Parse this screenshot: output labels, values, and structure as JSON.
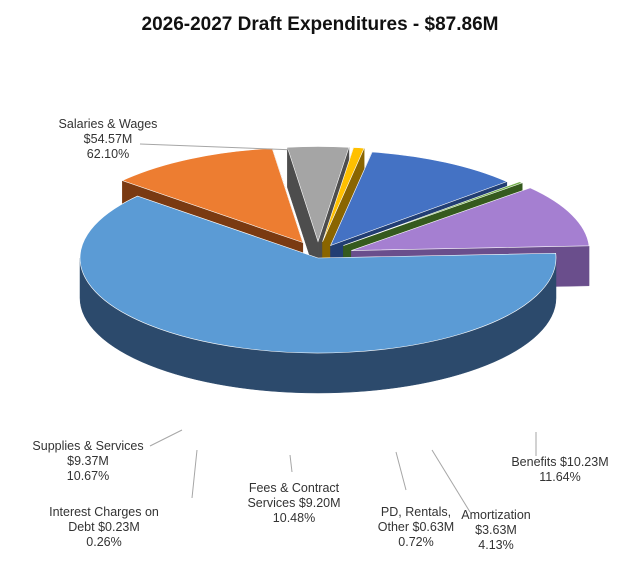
{
  "chart_data": {
    "type": "pie",
    "variant": "3d-exploded",
    "title": "2026-2027 Draft Expenditures - $87.86M",
    "legend": "none",
    "slices": [
      {
        "name": "Salaries & Wages",
        "amount": "$54.57M",
        "percent_label": "62.10%",
        "value": 62.1,
        "color": "#5b9bd5",
        "side_color": "#2c4a6c"
      },
      {
        "name": "Benefits",
        "amount": "$10.23M",
        "percent_label": "11.64%",
        "value": 11.64,
        "color": "#ed7d31",
        "side_color": "#7a3a12"
      },
      {
        "name": "Amortization",
        "amount": "$3.63M",
        "percent_label": "4.13%",
        "value": 4.13,
        "color": "#a5a5a5",
        "side_color": "#4d4d4d"
      },
      {
        "name": "PD, Rentals, Other",
        "amount": "$0.63M",
        "percent_label": "0.72%",
        "value": 0.72,
        "color": "#ffc000",
        "side_color": "#8a6500"
      },
      {
        "name": "Fees & Contract Services",
        "amount": "$9.20M",
        "percent_label": "10.48%",
        "value": 10.48,
        "color": "#4472c4",
        "side_color": "#223e73"
      },
      {
        "name": "Interest Charges on Debt",
        "amount": "$0.23M",
        "percent_label": "0.26%",
        "value": 0.26,
        "color": "#70ad47",
        "side_color": "#355a1e"
      },
      {
        "name": "Supplies & Services",
        "amount": "$9.37M",
        "percent_label": "10.67%",
        "value": 10.67,
        "color": "#a57fd1",
        "side_color": "#6a4e8c"
      }
    ],
    "labels": [
      {
        "lines": [
          "Salaries & Wages",
          "$54.57M",
          "62.10%"
        ]
      },
      {
        "lines": [
          "Benefits  $10.23M",
          "11.64%"
        ]
      },
      {
        "lines": [
          "Amortization",
          "$3.63M",
          "4.13%"
        ]
      },
      {
        "lines": [
          "PD, Rentals,",
          "Other  $0.63M",
          "0.72%"
        ]
      },
      {
        "lines": [
          "Fees & Contract",
          "Services  $9.20M",
          "10.48%"
        ]
      },
      {
        "lines": [
          "Interest Charges on",
          "Debt  $0.23M",
          "0.26%"
        ]
      },
      {
        "lines": [
          "Supplies & Services",
          "$9.37M",
          "10.67%"
        ]
      }
    ]
  }
}
